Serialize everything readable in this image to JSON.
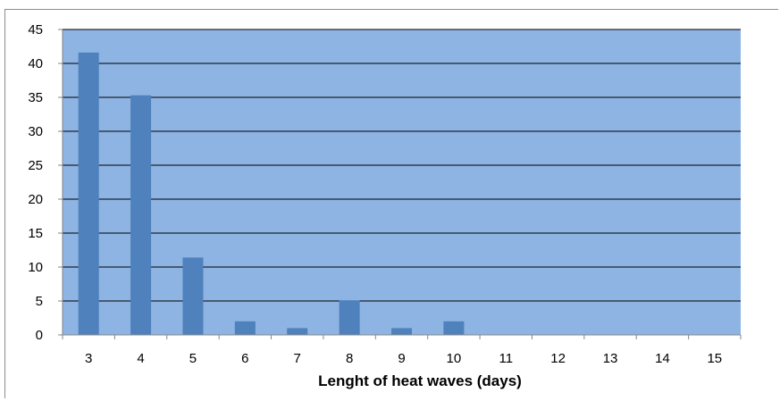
{
  "chart_data": {
    "type": "bar",
    "title": "",
    "xlabel": "Lenght of heat waves (days)",
    "ylabel": "",
    "categories": [
      "3",
      "4",
      "5",
      "6",
      "7",
      "8",
      "9",
      "10",
      "11",
      "12",
      "13",
      "14",
      "15"
    ],
    "values": [
      41.6,
      35.3,
      11.4,
      2.0,
      1.0,
      5.1,
      1.0,
      2.0,
      0,
      0,
      0,
      0,
      0
    ],
    "ylim": [
      0,
      45
    ],
    "yticks": [
      0,
      5,
      10,
      15,
      20,
      25,
      30,
      35,
      40,
      45
    ],
    "grid": true,
    "legend": "none",
    "colors": {
      "plot_background": "#8db4e3",
      "bar": "#4f81bd",
      "gridline": "#000000"
    }
  }
}
